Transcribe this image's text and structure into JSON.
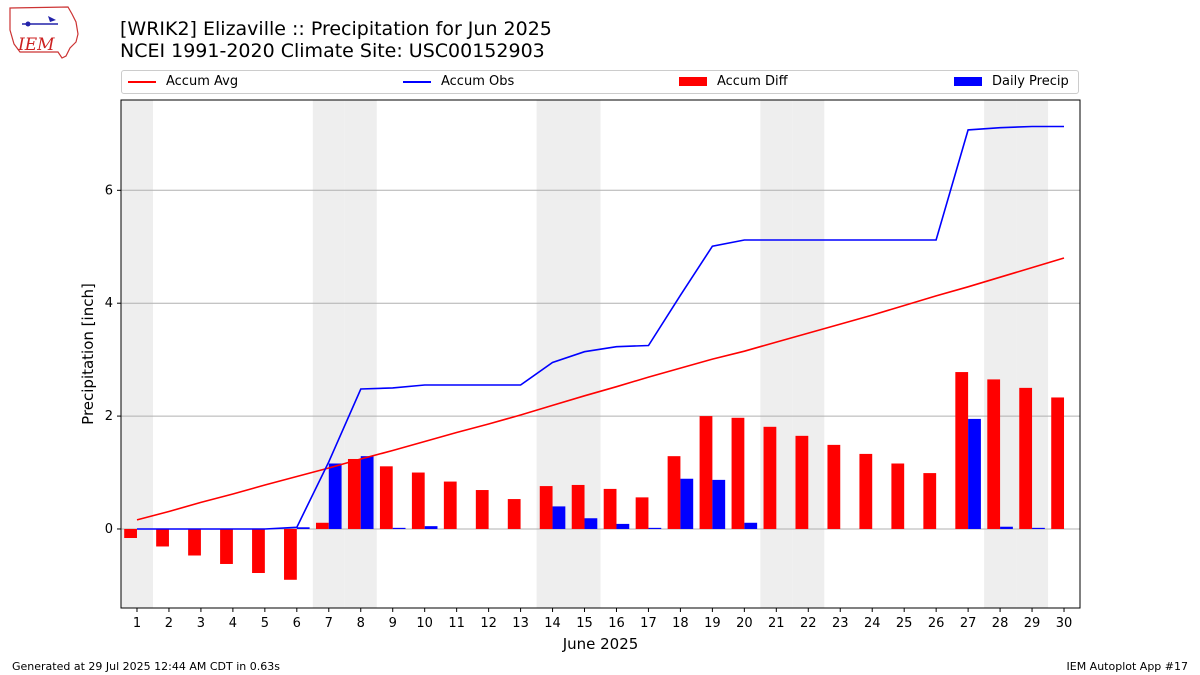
{
  "logo": {
    "text": "IEM",
    "icon": "iowa-state-logo-icon"
  },
  "title": {
    "line1": "[WRIK2] Elizaville :: Precipitation for Jun 2025",
    "line2": "NCEI 1991-2020 Climate Site: USC00152903"
  },
  "legend": [
    {
      "label": "Accum Avg",
      "color": "#ff0000",
      "kind": "line"
    },
    {
      "label": "Accum Obs",
      "color": "#0000ff",
      "kind": "line"
    },
    {
      "label": "Accum Diff",
      "color": "#ff0000",
      "kind": "bar"
    },
    {
      "label": "Daily Precip",
      "color": "#0000ff",
      "kind": "bar"
    }
  ],
  "footer": {
    "left": "Generated at 29 Jul 2025 12:44 AM CDT in 0.63s",
    "right": "IEM Autoplot App #17"
  },
  "chart_data": {
    "type": "bar",
    "xlabel": "June 2025",
    "ylabel": "Precipitation [inch]",
    "xlim": [
      0.5,
      30.5
    ],
    "ylim": [
      -1.4,
      7.6
    ],
    "yticks": [
      0,
      2,
      4,
      6
    ],
    "grid": "horizontal",
    "legend_position": "top",
    "weekend_days": [
      1,
      7,
      8,
      14,
      15,
      21,
      22,
      28,
      29
    ],
    "x": [
      1,
      2,
      3,
      4,
      5,
      6,
      7,
      8,
      9,
      10,
      11,
      12,
      13,
      14,
      15,
      16,
      17,
      18,
      19,
      20,
      21,
      22,
      23,
      24,
      25,
      26,
      27,
      28,
      29,
      30
    ],
    "series": [
      {
        "name": "Accum Avg",
        "kind": "line",
        "color": "#ff0000",
        "values": [
          0.16,
          0.31,
          0.47,
          0.62,
          0.78,
          0.93,
          1.08,
          1.24,
          1.39,
          1.55,
          1.71,
          1.86,
          2.02,
          2.19,
          2.36,
          2.52,
          2.69,
          2.85,
          3.01,
          3.15,
          3.31,
          3.47,
          3.63,
          3.79,
          3.96,
          4.13,
          4.29,
          4.46,
          4.63,
          4.8
        ]
      },
      {
        "name": "Accum Obs",
        "kind": "line",
        "color": "#0000ff",
        "values": [
          0.0,
          0.0,
          0.0,
          0.0,
          0.0,
          0.03,
          1.19,
          2.48,
          2.5,
          2.55,
          2.55,
          2.55,
          2.55,
          2.95,
          3.14,
          3.23,
          3.25,
          4.14,
          5.01,
          5.12,
          5.12,
          5.12,
          5.12,
          5.12,
          5.12,
          5.12,
          7.07,
          7.11,
          7.13,
          7.13
        ]
      },
      {
        "name": "Accum Diff",
        "kind": "bar",
        "color": "#ff0000",
        "values": [
          -0.16,
          -0.31,
          -0.47,
          -0.62,
          -0.78,
          -0.9,
          0.11,
          1.24,
          1.11,
          1.0,
          0.84,
          0.69,
          0.53,
          0.76,
          0.78,
          0.71,
          0.56,
          1.29,
          2.0,
          1.97,
          1.81,
          1.65,
          1.49,
          1.33,
          1.16,
          0.99,
          2.78,
          2.65,
          2.5,
          2.33
        ]
      },
      {
        "name": "Daily Precip",
        "kind": "bar",
        "color": "#0000ff",
        "values": [
          0.0,
          0.0,
          0.0,
          0.0,
          0.0,
          0.03,
          1.16,
          1.29,
          0.02,
          0.05,
          0.0,
          0.0,
          0.0,
          0.4,
          0.19,
          0.09,
          0.02,
          0.89,
          0.87,
          0.11,
          0.0,
          0.0,
          0.0,
          0.0,
          0.0,
          0.0,
          1.95,
          0.04,
          0.02,
          0.0
        ]
      }
    ]
  }
}
